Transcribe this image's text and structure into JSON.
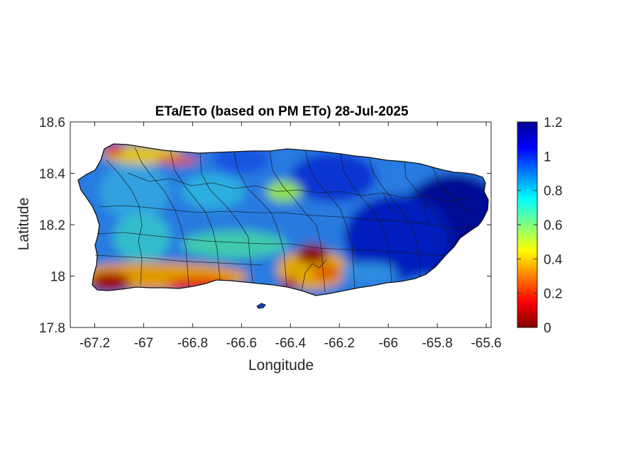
{
  "title": "ETa/ETo (based on PM ETo) 28-Jul-2025",
  "xlabel": "Longitude",
  "ylabel": "Latitude",
  "x_ticks": [
    "-67.2",
    "-67",
    "-66.8",
    "-66.6",
    "-66.4",
    "-66.2",
    "-66",
    "-65.8",
    "-65.6"
  ],
  "y_ticks": [
    "18.6",
    "18.4",
    "18.2",
    "18",
    "17.8"
  ],
  "colorbar_ticks": [
    "1.2",
    "1",
    "0.8",
    "0.6",
    "0.4",
    "0.2",
    "0"
  ],
  "colormap": "jet",
  "chart_data": {
    "type": "heatmap",
    "title": "ETa/ETo (based on PM ETo) 28-Jul-2025",
    "xlabel": "Longitude",
    "ylabel": "Latitude",
    "xlim": [
      -67.3,
      -65.58
    ],
    "ylim": [
      17.8,
      18.6
    ],
    "clim": [
      0,
      1.2
    ],
    "colorbar": true,
    "colormap": "jet",
    "region": "Puerto Rico"
  }
}
